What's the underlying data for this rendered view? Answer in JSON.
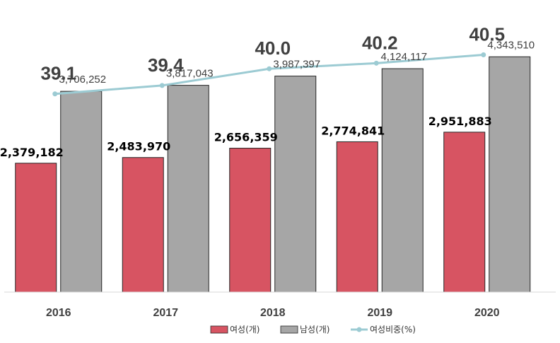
{
  "chart_data": {
    "type": "bar",
    "categories": [
      "2016",
      "2017",
      "2018",
      "2019",
      "2020"
    ],
    "series": [
      {
        "name": "여성(개)",
        "kind": "bar",
        "color": "#d75462",
        "values": [
          2379182,
          2483970,
          2656359,
          2774841,
          2951883
        ],
        "labels": [
          "2,379,182",
          "2,483,970",
          "2,656,359",
          "2,774,841",
          "2,951,883"
        ]
      },
      {
        "name": "남성(개)",
        "kind": "bar",
        "color": "#a6a6a6",
        "values": [
          3706252,
          3817043,
          3987397,
          4124117,
          4343510
        ],
        "labels": [
          "3,706,252",
          "3,817,043",
          "3,987,397",
          "4,124,117",
          "4,343,510"
        ]
      },
      {
        "name": "여성비중(%)",
        "kind": "line",
        "color": "#9ccbd3",
        "values": [
          39.1,
          39.4,
          40.0,
          40.2,
          40.5
        ],
        "labels": [
          "39.1",
          "39.4",
          "40.0",
          "40.2",
          "40.5"
        ]
      }
    ],
    "bar_ylim": [
      0,
      5000000
    ],
    "line_ylim": [
      32,
      41.5
    ],
    "grid": false,
    "legend_position": "bottom"
  }
}
